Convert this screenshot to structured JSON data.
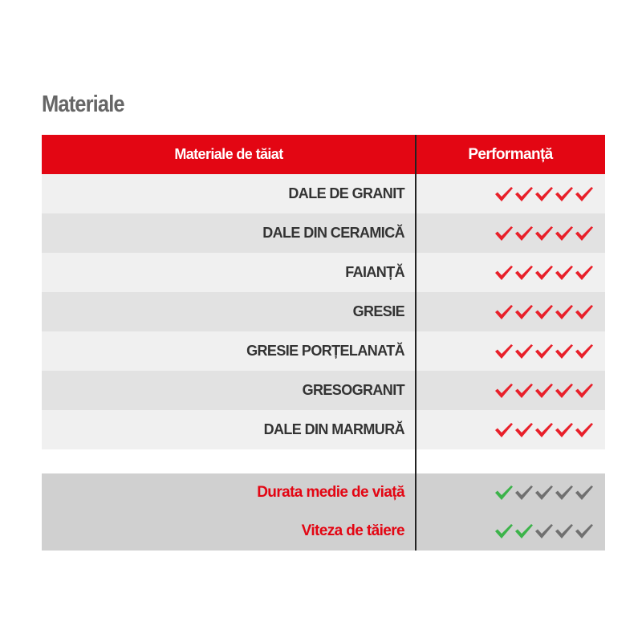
{
  "title": "Materiale",
  "table": {
    "headers": [
      "Materiale de tăiat",
      "Performanță"
    ],
    "rows": [
      {
        "material": "DALE DE GRANIT",
        "rating": 5
      },
      {
        "material": "DALE DIN CERAMICĂ",
        "rating": 5
      },
      {
        "material": "FAIANȚĂ",
        "rating": 5
      },
      {
        "material": "GRESIE",
        "rating": 5
      },
      {
        "material": "GRESIE PORȚELANATĂ",
        "rating": 5
      },
      {
        "material": "GRESOGRANIT",
        "rating": 5
      },
      {
        "material": "DALE DIN MARMURĂ",
        "rating": 5
      }
    ],
    "metrics": [
      {
        "label": "Durata medie de viață",
        "rating": 1
      },
      {
        "label": "Viteza de tăiere",
        "rating": 2
      }
    ],
    "max_rating": 5
  },
  "colors": {
    "accent": "#e30613",
    "check_red": "#e8202a",
    "check_green": "#3cb34a",
    "check_gray": "#707070"
  }
}
